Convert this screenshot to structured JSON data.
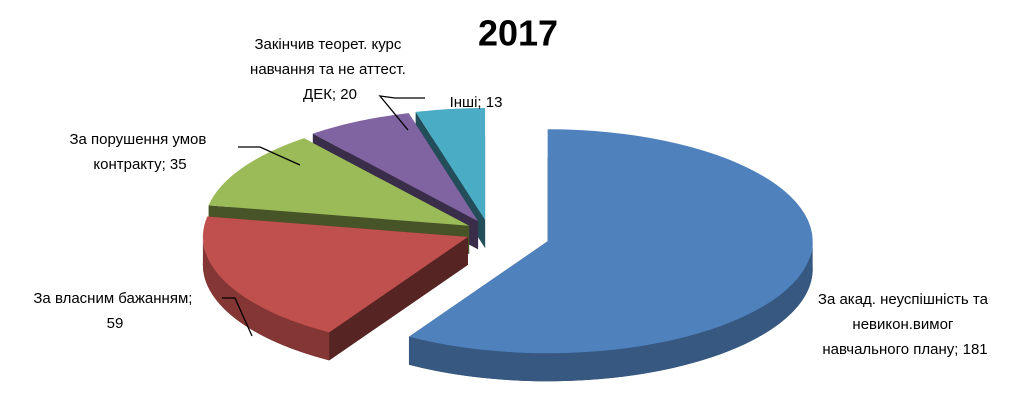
{
  "chart_data": {
    "type": "pie3d",
    "title": "2017",
    "values": [
      181,
      59,
      35,
      20,
      13
    ],
    "value_labels": [
      "За акад. неуспішність та невикон.вимог навчального плану; 181",
      "За власним бажанням; 59",
      "За порушення умов контракту; 35",
      "Закінчив теорет. курс навчання та не аттест. ДЕК; 20",
      "Інші; 13"
    ],
    "colors": [
      "#4f81bd",
      "#c0504d",
      "#9bbb59",
      "#8064a2",
      "#4bacc6"
    ]
  }
}
